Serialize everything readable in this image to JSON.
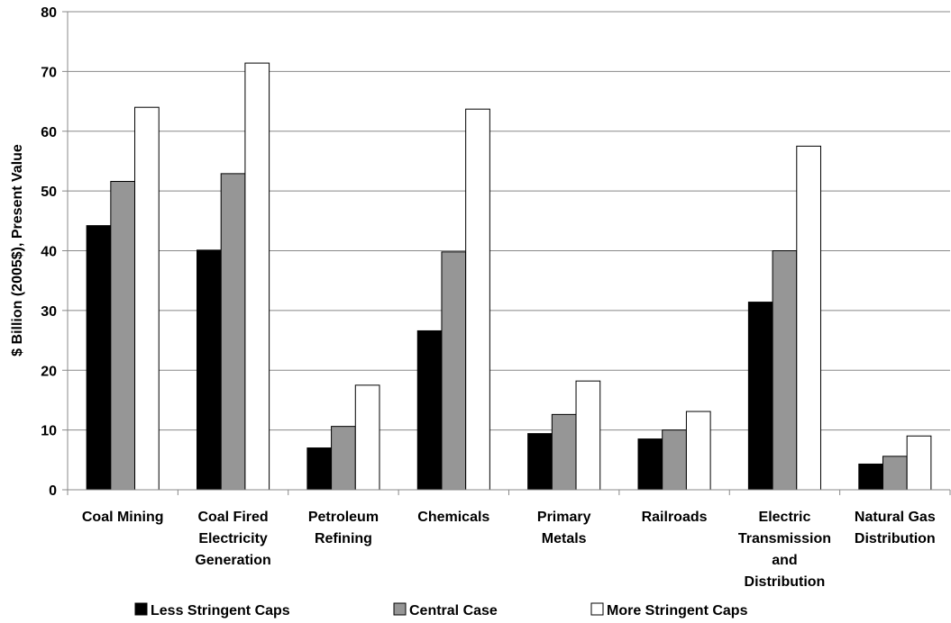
{
  "chart_data": {
    "type": "bar",
    "title": "",
    "xlabel": "",
    "ylabel": "$ Billion (2005$), Present Value",
    "ylim": [
      0,
      80
    ],
    "yticks": [
      0,
      10,
      20,
      30,
      40,
      50,
      60,
      70,
      80
    ],
    "grid": true,
    "legend_position": "bottom",
    "categories": [
      [
        "Coal Mining"
      ],
      [
        "Coal Fired",
        "Electricity",
        "Generation"
      ],
      [
        "Petroleum",
        "Refining"
      ],
      [
        "Chemicals"
      ],
      [
        "Primary",
        "Metals"
      ],
      [
        "Railroads"
      ],
      [
        "Electric",
        "Transmission",
        "and",
        "Distribution"
      ],
      [
        "Natural Gas",
        "Distribution"
      ]
    ],
    "series": [
      {
        "name": "Less Stringent Caps",
        "color": "#000000",
        "values": [
          44.2,
          40.1,
          7.0,
          26.6,
          9.4,
          8.5,
          31.4,
          4.3
        ]
      },
      {
        "name": "Central Case",
        "color": "#969696",
        "values": [
          51.6,
          52.9,
          10.6,
          39.8,
          12.6,
          10.0,
          40.0,
          5.6
        ]
      },
      {
        "name": "More Stringent Caps",
        "color": "#ffffff",
        "values": [
          64.0,
          71.4,
          17.5,
          63.7,
          18.2,
          13.1,
          57.5,
          9.0
        ]
      }
    ]
  }
}
